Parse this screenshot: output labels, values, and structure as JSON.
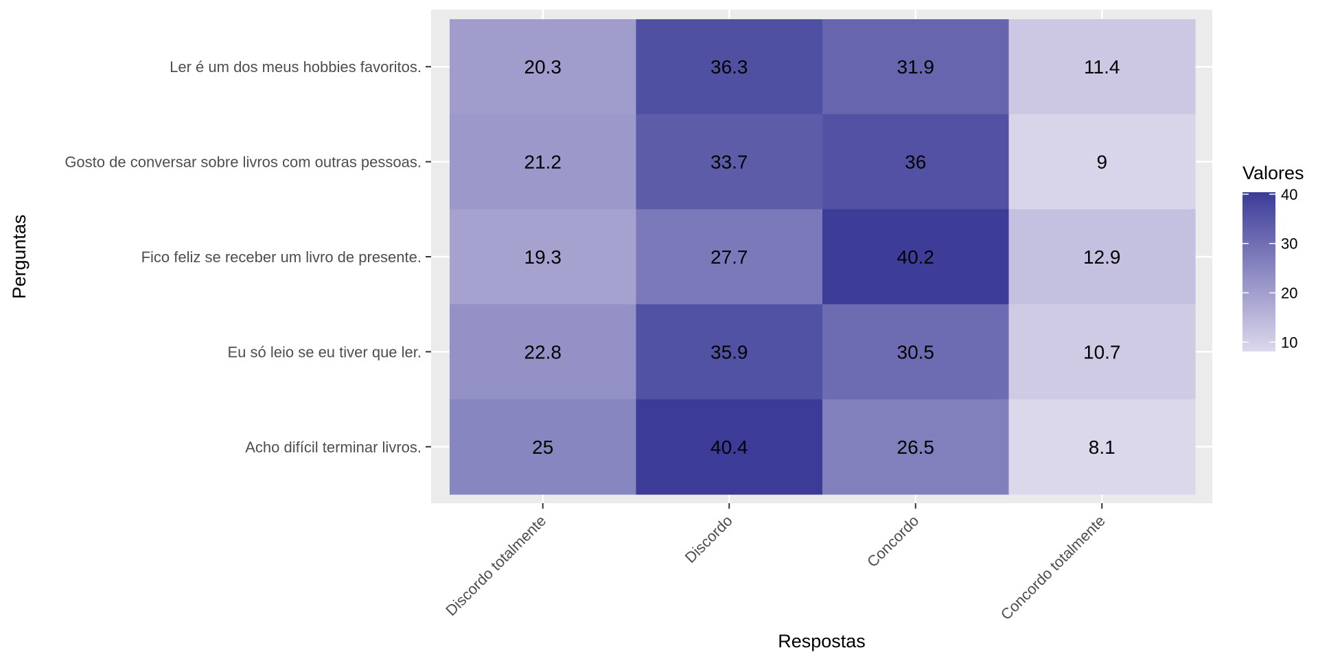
{
  "chart_data": {
    "type": "heatmap",
    "title": "",
    "xlabel": "Respostas",
    "ylabel": "Perguntas",
    "x_categories": [
      "Discordo totalmente",
      "Discordo",
      "Concordo",
      "Concordo totalmente"
    ],
    "y_categories": [
      "Ler é um dos meus hobbies favoritos.",
      "Gosto de conversar sobre livros com outras pessoas.",
      "Fico feliz se receber um livro de presente.",
      "Eu só leio se eu tiver que ler.",
      "Acho difícil terminar livros."
    ],
    "values": [
      [
        20.3,
        36.3,
        31.9,
        11.4
      ],
      [
        21.2,
        33.7,
        36,
        9
      ],
      [
        19.3,
        27.7,
        40.2,
        12.9
      ],
      [
        22.8,
        35.9,
        30.5,
        10.7
      ],
      [
        25,
        40.4,
        26.5,
        8.1
      ]
    ],
    "value_labels": [
      [
        "20.3",
        "36.3",
        "31.9",
        "11.4"
      ],
      [
        "21.2",
        "33.7",
        "36",
        "9"
      ],
      [
        "19.3",
        "27.7",
        "40.2",
        "12.9"
      ],
      [
        "22.8",
        "35.9",
        "30.5",
        "10.7"
      ],
      [
        "25",
        "40.4",
        "26.5",
        "8.1"
      ]
    ],
    "legend": {
      "title": "Valores",
      "ticks": [
        10,
        20,
        30,
        40
      ],
      "tick_labels": [
        "10",
        "20",
        "30",
        "40"
      ],
      "range": [
        8.1,
        40.4
      ],
      "low_color": "#dcd8ec",
      "high_color": "#3c3c98",
      "placement": "right"
    },
    "panel_background": "#ebebeb",
    "grid": true
  }
}
